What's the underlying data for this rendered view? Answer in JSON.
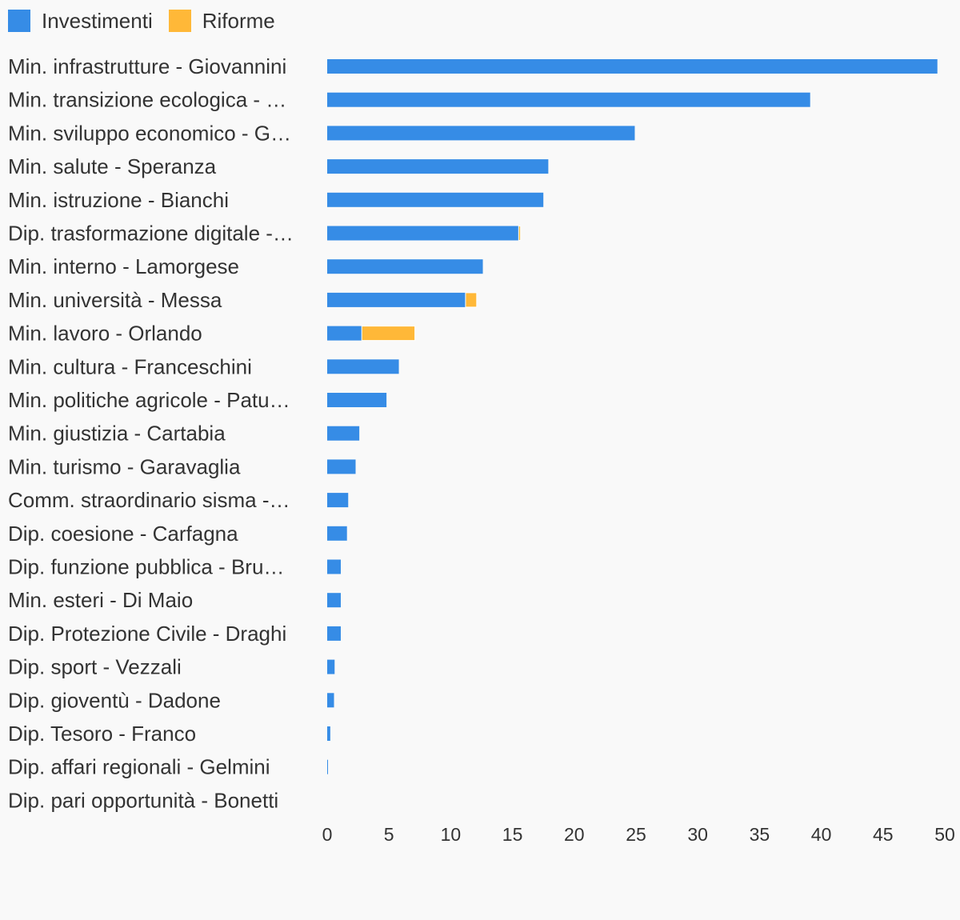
{
  "chart_data": {
    "type": "bar",
    "orientation": "horizontal",
    "stacked": true,
    "title": "",
    "xlabel": "",
    "ylabel": "",
    "xlim": [
      0,
      50
    ],
    "x_ticks": [
      0,
      5,
      10,
      15,
      20,
      25,
      30,
      35,
      40,
      45,
      50
    ],
    "grid": false,
    "legend_position": "top-left",
    "categories": [
      "Min. infrastrutture - Giovannini",
      "Min. transizione ecologica - …",
      "Min. sviluppo economico - G…",
      "Min. salute - Speranza",
      "Min. istruzione - Bianchi",
      "Dip. trasformazione digitale -…",
      "Min. interno - Lamorgese",
      "Min. università - Messa",
      "Min. lavoro - Orlando",
      "Min. cultura - Franceschini",
      "Min. politiche agricole - Patu…",
      "Min. giustizia - Cartabia",
      "Min. turismo - Garavaglia",
      "Comm. straordinario sisma -…",
      "Dip. coesione - Carfagna",
      "Dip. funzione pubblica - Bru…",
      "Min. esteri - Di Maio",
      "Dip. Protezione Civile - Draghi",
      "Dip. sport - Vezzali",
      "Dip. gioventù - Dadone",
      "Dip. Tesoro - Franco",
      "Dip. affari regionali - Gelmini",
      "Dip. pari opportunità - Bonetti"
    ],
    "series": [
      {
        "name": "Investimenti",
        "color": "#368ce6",
        "values": [
          49.4,
          39.1,
          24.9,
          17.9,
          17.5,
          15.5,
          12.6,
          11.2,
          2.8,
          5.8,
          4.8,
          2.6,
          2.3,
          1.7,
          1.6,
          1.1,
          1.1,
          1.1,
          0.6,
          0.55,
          0.25,
          0.05,
          0
        ]
      },
      {
        "name": "Riforme",
        "color": "#ffb838",
        "values": [
          0,
          0,
          0,
          0,
          0,
          0.15,
          0,
          0.9,
          4.3,
          0,
          0,
          0,
          0,
          0,
          0,
          0,
          0,
          0,
          0,
          0,
          0,
          0,
          0
        ]
      }
    ]
  }
}
